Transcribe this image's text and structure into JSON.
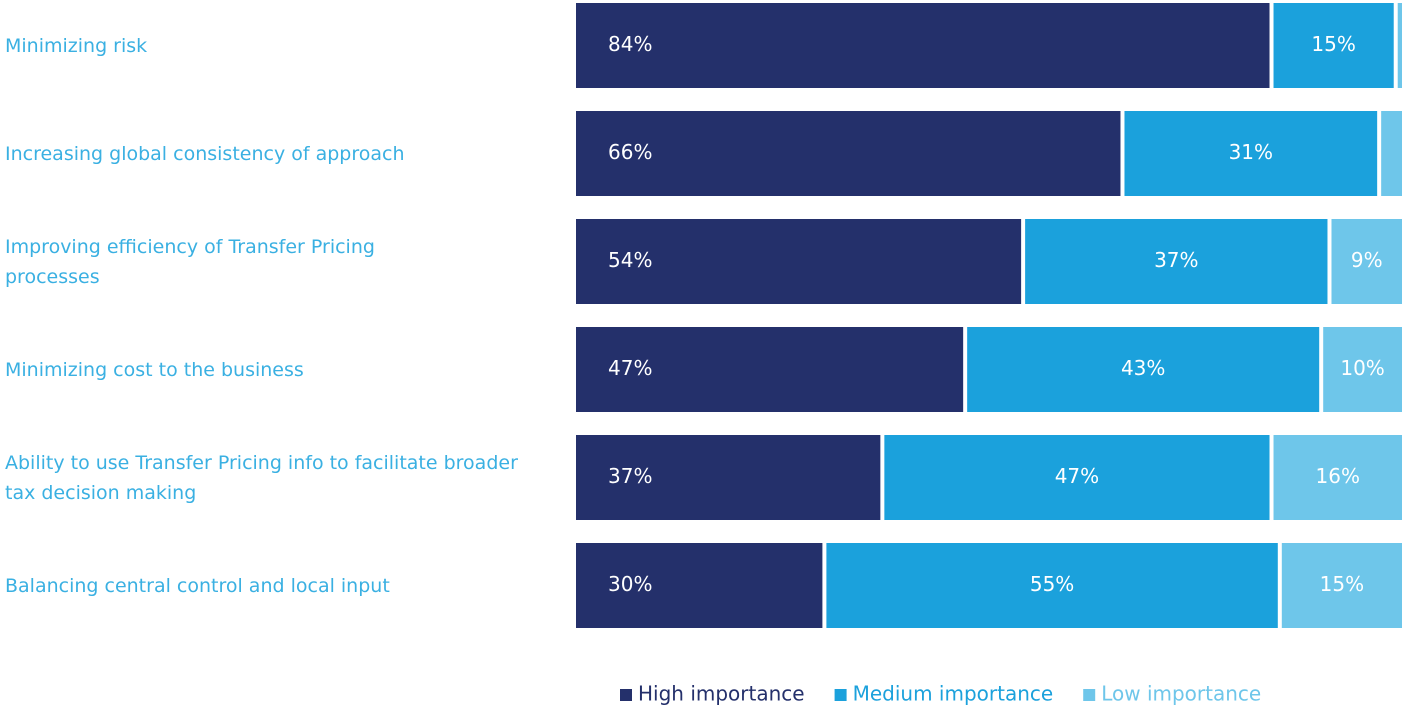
{
  "chart_data": {
    "type": "stacked-barh",
    "categories": [
      "Minimizing risk",
      "Increasing global consistency of approach",
      "Improving efficiency of Transfer Pricing processes",
      "Minimizing cost to the business",
      "Ability to use Transfer Pricing info to facilitate broader tax decision making",
      "Balancing central control and local input"
    ],
    "series": [
      {
        "name": "High importance",
        "color": "#24306b",
        "values": [
          84,
          66,
          54,
          47,
          37,
          30
        ],
        "value_labels": [
          "84%",
          "66%",
          "54%",
          "47%",
          "37%",
          "30%"
        ]
      },
      {
        "name": "Medium importance",
        "color": "#1ba1dc",
        "values": [
          15,
          31,
          37,
          43,
          47,
          55
        ],
        "value_labels": [
          "15%",
          "31%",
          "37%",
          "43%",
          "47%",
          "55%"
        ]
      },
      {
        "name": "Low importance",
        "color": "#6ec6ea",
        "values": [
          1,
          3,
          9,
          10,
          16,
          15
        ],
        "value_labels": [
          null,
          null,
          "9%",
          "10%",
          "16%",
          "15%"
        ]
      }
    ],
    "xlim": [
      0,
      100
    ],
    "legend": "bottom"
  }
}
